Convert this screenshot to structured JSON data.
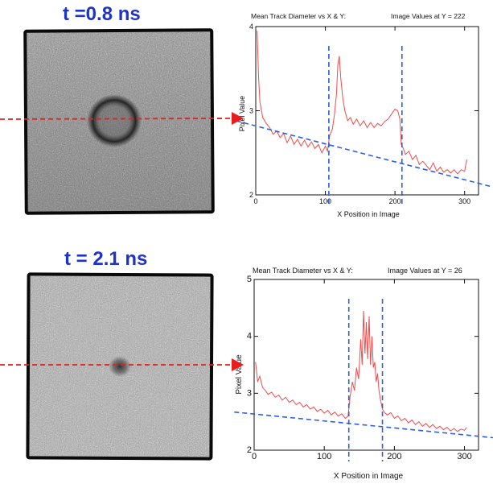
{
  "panels": [
    {
      "time_label": "t =0.8 ns",
      "chart_title": "Mean Track Diameter vs X & Y:",
      "image_values_label": "Image Values at Y = 222"
    },
    {
      "time_label": "t = 2.1 ns",
      "chart_title": "Mean Track Diameter vs X & Y:",
      "image_values_label": "Image Values at Y = 26"
    }
  ],
  "colors": {
    "time_label": "#2033c7",
    "trace": "#ef4b4b",
    "reference_lines": "#2a5fe0",
    "marker_arrow": "#e81e1e"
  },
  "chart_data": [
    {
      "type": "line",
      "title": "Mean Track Diameter vs X & Y:",
      "subtitle": "Image Values at Y = 222",
      "xlabel": "X Position in Image",
      "ylabel": "Pixel Value",
      "xlim": [
        0,
        320
      ],
      "ylim": [
        2,
        4
      ],
      "xticks": [
        0,
        100,
        200,
        300
      ],
      "yticks": [
        2,
        3,
        4
      ],
      "series": [
        {
          "values_xy": [
            [
              2,
              3.95
            ],
            [
              4,
              3.4
            ],
            [
              6,
              3.1
            ],
            [
              10,
              2.92
            ],
            [
              15,
              2.85
            ],
            [
              20,
              2.8
            ],
            [
              25,
              2.72
            ],
            [
              30,
              2.76
            ],
            [
              35,
              2.68
            ],
            [
              40,
              2.73
            ],
            [
              45,
              2.62
            ],
            [
              50,
              2.7
            ],
            [
              55,
              2.6
            ],
            [
              60,
              2.66
            ],
            [
              65,
              2.58
            ],
            [
              70,
              2.65
            ],
            [
              75,
              2.57
            ],
            [
              80,
              2.63
            ],
            [
              85,
              2.55
            ],
            [
              90,
              2.6
            ],
            [
              95,
              2.5
            ],
            [
              100,
              2.58
            ],
            [
              103,
              2.52
            ],
            [
              106,
              2.7
            ],
            [
              110,
              2.78
            ],
            [
              113,
              2.95
            ],
            [
              116,
              3.2
            ],
            [
              118,
              3.55
            ],
            [
              120,
              3.65
            ],
            [
              122,
              3.4
            ],
            [
              125,
              3.15
            ],
            [
              128,
              3.0
            ],
            [
              132,
              2.88
            ],
            [
              136,
              2.92
            ],
            [
              140,
              2.84
            ],
            [
              145,
              2.9
            ],
            [
              150,
              2.82
            ],
            [
              155,
              2.88
            ],
            [
              160,
              2.8
            ],
            [
              165,
              2.86
            ],
            [
              170,
              2.8
            ],
            [
              175,
              2.85
            ],
            [
              180,
              2.82
            ],
            [
              185,
              2.87
            ],
            [
              190,
              2.9
            ],
            [
              195,
              2.96
            ],
            [
              200,
              3.02
            ],
            [
              204,
              3.0
            ],
            [
              207,
              2.9
            ],
            [
              209,
              2.6
            ],
            [
              212,
              2.55
            ],
            [
              215,
              2.48
            ],
            [
              220,
              2.52
            ],
            [
              225,
              2.42
            ],
            [
              230,
              2.47
            ],
            [
              235,
              2.36
            ],
            [
              240,
              2.4
            ],
            [
              245,
              2.35
            ],
            [
              250,
              2.3
            ],
            [
              255,
              2.38
            ],
            [
              260,
              2.28
            ],
            [
              265,
              2.33
            ],
            [
              270,
              2.27
            ],
            [
              275,
              2.3
            ],
            [
              280,
              2.26
            ],
            [
              285,
              2.3
            ],
            [
              290,
              2.25
            ],
            [
              295,
              2.3
            ],
            [
              300,
              2.28
            ],
            [
              303,
              2.42
            ]
          ]
        }
      ],
      "vertical_markers": [
        105,
        210
      ],
      "baseline": {
        "from": [
          -10,
          2.88
        ],
        "to": [
          345,
          2.06
        ]
      }
    },
    {
      "type": "line",
      "title": "Mean Track Diameter vs X & Y:",
      "subtitle": "Image Values at Y = 26",
      "xlabel": "X Position in Image",
      "ylabel": "Pixel Value",
      "xlim": [
        0,
        320
      ],
      "ylim": [
        2,
        5
      ],
      "xticks": [
        0,
        100,
        200,
        300
      ],
      "yticks": [
        2,
        3,
        4,
        5
      ],
      "series": [
        {
          "values_xy": [
            [
              2,
              3.55
            ],
            [
              5,
              3.2
            ],
            [
              8,
              3.3
            ],
            [
              12,
              3.1
            ],
            [
              16,
              3.05
            ],
            [
              20,
              2.98
            ],
            [
              25,
              3.02
            ],
            [
              30,
              2.93
            ],
            [
              35,
              2.97
            ],
            [
              40,
              2.88
            ],
            [
              45,
              2.93
            ],
            [
              50,
              2.84
            ],
            [
              55,
              2.88
            ],
            [
              60,
              2.8
            ],
            [
              65,
              2.84
            ],
            [
              70,
              2.76
            ],
            [
              75,
              2.8
            ],
            [
              80,
              2.72
            ],
            [
              85,
              2.76
            ],
            [
              90,
              2.68
            ],
            [
              95,
              2.72
            ],
            [
              100,
              2.65
            ],
            [
              105,
              2.7
            ],
            [
              110,
              2.62
            ],
            [
              115,
              2.67
            ],
            [
              120,
              2.6
            ],
            [
              125,
              2.64
            ],
            [
              130,
              2.56
            ],
            [
              134,
              2.6
            ],
            [
              137,
              2.95
            ],
            [
              140,
              3.2
            ],
            [
              143,
              3.05
            ],
            [
              146,
              3.45
            ],
            [
              149,
              3.25
            ],
            [
              152,
              3.95
            ],
            [
              154,
              3.5
            ],
            [
              156,
              4.45
            ],
            [
              158,
              3.7
            ],
            [
              160,
              4.25
            ],
            [
              162,
              3.6
            ],
            [
              164,
              4.35
            ],
            [
              166,
              3.5
            ],
            [
              168,
              4.0
            ],
            [
              170,
              3.45
            ],
            [
              172,
              3.55
            ],
            [
              174,
              3.2
            ],
            [
              176,
              3.35
            ],
            [
              178,
              3.05
            ],
            [
              180,
              2.9
            ],
            [
              183,
              2.72
            ],
            [
              186,
              2.66
            ],
            [
              190,
              2.62
            ],
            [
              195,
              2.66
            ],
            [
              200,
              2.56
            ],
            [
              205,
              2.6
            ],
            [
              210,
              2.52
            ],
            [
              215,
              2.56
            ],
            [
              220,
              2.48
            ],
            [
              225,
              2.53
            ],
            [
              230,
              2.45
            ],
            [
              235,
              2.5
            ],
            [
              240,
              2.42
            ],
            [
              245,
              2.47
            ],
            [
              250,
              2.4
            ],
            [
              255,
              2.45
            ],
            [
              260,
              2.38
            ],
            [
              265,
              2.42
            ],
            [
              270,
              2.36
            ],
            [
              275,
              2.4
            ],
            [
              280,
              2.34
            ],
            [
              285,
              2.38
            ],
            [
              290,
              2.33
            ],
            [
              295,
              2.37
            ],
            [
              300,
              2.35
            ],
            [
              303,
              2.4
            ]
          ]
        }
      ],
      "vertical_markers": [
        135,
        183
      ],
      "baseline": {
        "from": [
          -10,
          2.67
        ],
        "to": [
          345,
          2.2
        ]
      }
    }
  ]
}
